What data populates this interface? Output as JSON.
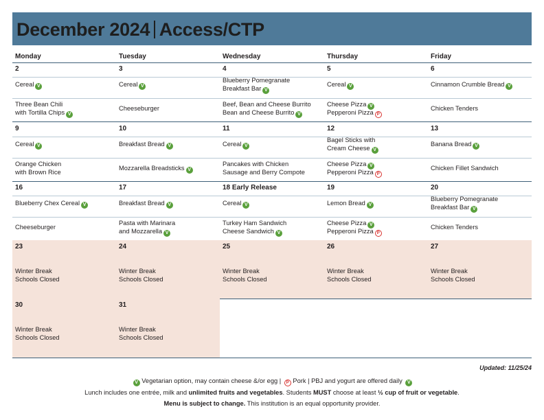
{
  "header": {
    "title_left": "December 2024",
    "title_right": "Access/CTP"
  },
  "days": [
    "Monday",
    "Tuesday",
    "Wednesday",
    "Thursday",
    "Friday"
  ],
  "weeks": [
    {
      "cells": [
        {
          "date": "2",
          "breakfast": [
            [
              "Cereal",
              "veg"
            ]
          ],
          "lunch": [
            [
              "Three Bean Chili",
              ""
            ],
            [
              "with Tortilla Chips",
              "veg"
            ]
          ]
        },
        {
          "date": "3",
          "breakfast": [
            [
              "Cereal",
              "veg"
            ]
          ],
          "lunch": [
            [
              "Cheeseburger",
              ""
            ]
          ]
        },
        {
          "date": "4",
          "breakfast": [
            [
              "Blueberry Pomegranate",
              ""
            ],
            [
              "Breakfast Bar",
              "veg"
            ]
          ],
          "lunch": [
            [
              "Beef, Bean and Cheese Burrito",
              ""
            ],
            [
              "Bean and Cheese Burrito",
              "veg"
            ]
          ]
        },
        {
          "date": "5",
          "breakfast": [
            [
              "Cereal",
              "veg"
            ]
          ],
          "lunch": [
            [
              "Cheese Pizza",
              "veg"
            ],
            [
              "Pepperoni Pizza",
              "pork"
            ]
          ]
        },
        {
          "date": "6",
          "breakfast": [
            [
              "Cinnamon Crumble Bread",
              "veg"
            ]
          ],
          "lunch": [
            [
              "Chicken Tenders",
              ""
            ]
          ]
        }
      ]
    },
    {
      "cells": [
        {
          "date": "9",
          "breakfast": [
            [
              "Cereal",
              "veg"
            ]
          ],
          "lunch": [
            [
              "Orange Chicken",
              ""
            ],
            [
              "with Brown Rice",
              ""
            ]
          ]
        },
        {
          "date": "10",
          "breakfast": [
            [
              "Breakfast Bread",
              "veg"
            ]
          ],
          "lunch": [
            [
              "Mozzarella Breadsticks",
              "veg"
            ]
          ]
        },
        {
          "date": "11",
          "breakfast": [
            [
              "Cereal",
              "veg"
            ]
          ],
          "lunch": [
            [
              "Pancakes with Chicken",
              ""
            ],
            [
              "Sausage and Berry Compote",
              ""
            ]
          ]
        },
        {
          "date": "12",
          "breakfast": [
            [
              "Bagel Sticks with",
              ""
            ],
            [
              "Cream Cheese",
              "veg"
            ]
          ],
          "lunch": [
            [
              "Cheese Pizza",
              "veg"
            ],
            [
              "Pepperoni Pizza",
              "pork"
            ]
          ]
        },
        {
          "date": "13",
          "breakfast": [
            [
              "Banana Bread",
              "veg"
            ]
          ],
          "lunch": [
            [
              "Chicken Fillet Sandwich",
              ""
            ]
          ]
        }
      ]
    },
    {
      "cells": [
        {
          "date": "16",
          "breakfast": [
            [
              "Blueberry Chex Cereal",
              "veg"
            ]
          ],
          "lunch": [
            [
              "Cheeseburger",
              ""
            ]
          ]
        },
        {
          "date": "17",
          "breakfast": [
            [
              "Breakfast Bread",
              "veg"
            ]
          ],
          "lunch": [
            [
              "Pasta with Marinara",
              ""
            ],
            [
              "and Mozzarella",
              "veg"
            ]
          ]
        },
        {
          "date": "18 Early Release",
          "breakfast": [
            [
              "Cereal",
              "veg"
            ]
          ],
          "lunch": [
            [
              "Turkey Ham Sandwich",
              ""
            ],
            [
              "Cheese Sandwich",
              "veg"
            ]
          ]
        },
        {
          "date": "19",
          "breakfast": [
            [
              "Lemon Bread",
              "veg"
            ]
          ],
          "lunch": [
            [
              "Cheese Pizza",
              "veg"
            ],
            [
              "Pepperoni Pizza",
              "pork"
            ]
          ]
        },
        {
          "date": "20",
          "breakfast": [
            [
              "Blueberry Pomegranate",
              ""
            ],
            [
              "Breakfast Bar",
              "veg"
            ]
          ],
          "lunch": [
            [
              "Chicken Tenders",
              ""
            ]
          ]
        }
      ]
    },
    {
      "winter": true,
      "cells": [
        {
          "date": "23",
          "note": [
            "Winter Break",
            "Schools Closed"
          ]
        },
        {
          "date": "24",
          "note": [
            "Winter Break",
            "Schools Closed"
          ]
        },
        {
          "date": "25",
          "note": [
            "Winter Break",
            "Schools Closed"
          ]
        },
        {
          "date": "26",
          "note": [
            "Winter Break",
            "Schools Closed"
          ]
        },
        {
          "date": "27",
          "note": [
            "Winter Break",
            "Schools Closed"
          ]
        }
      ]
    },
    {
      "winter": true,
      "cells": [
        {
          "date": "30",
          "note": [
            "Winter Break",
            "Schools Closed"
          ]
        },
        {
          "date": "31",
          "note": [
            "Winter Break",
            "Schools Closed"
          ]
        }
      ]
    }
  ],
  "footer": {
    "updated": "Updated: 11/25/24",
    "legend_veg": "Vegetarian option, may contain cheese &/or egg",
    "legend_pork": "Pork",
    "legend_daily": "PBJ and yogurt are offered daily",
    "lunch_a": "Lunch includes one entrée, milk and ",
    "lunch_b": "unlimited fruits and vegetables",
    "lunch_c": ". Students ",
    "lunch_d": "MUST",
    "lunch_e": " choose at least ",
    "lunch_f": "½ cup of fruit or vegetable",
    "lunch_g": ".",
    "change_a": "Menu is subject to change.",
    "change_b": " This institution is an equal opportunity provider."
  },
  "colors": {
    "header": "#4f7a99",
    "winter": "#f5e3da",
    "veg": "#5aa03c",
    "pork": "#d8322f"
  }
}
